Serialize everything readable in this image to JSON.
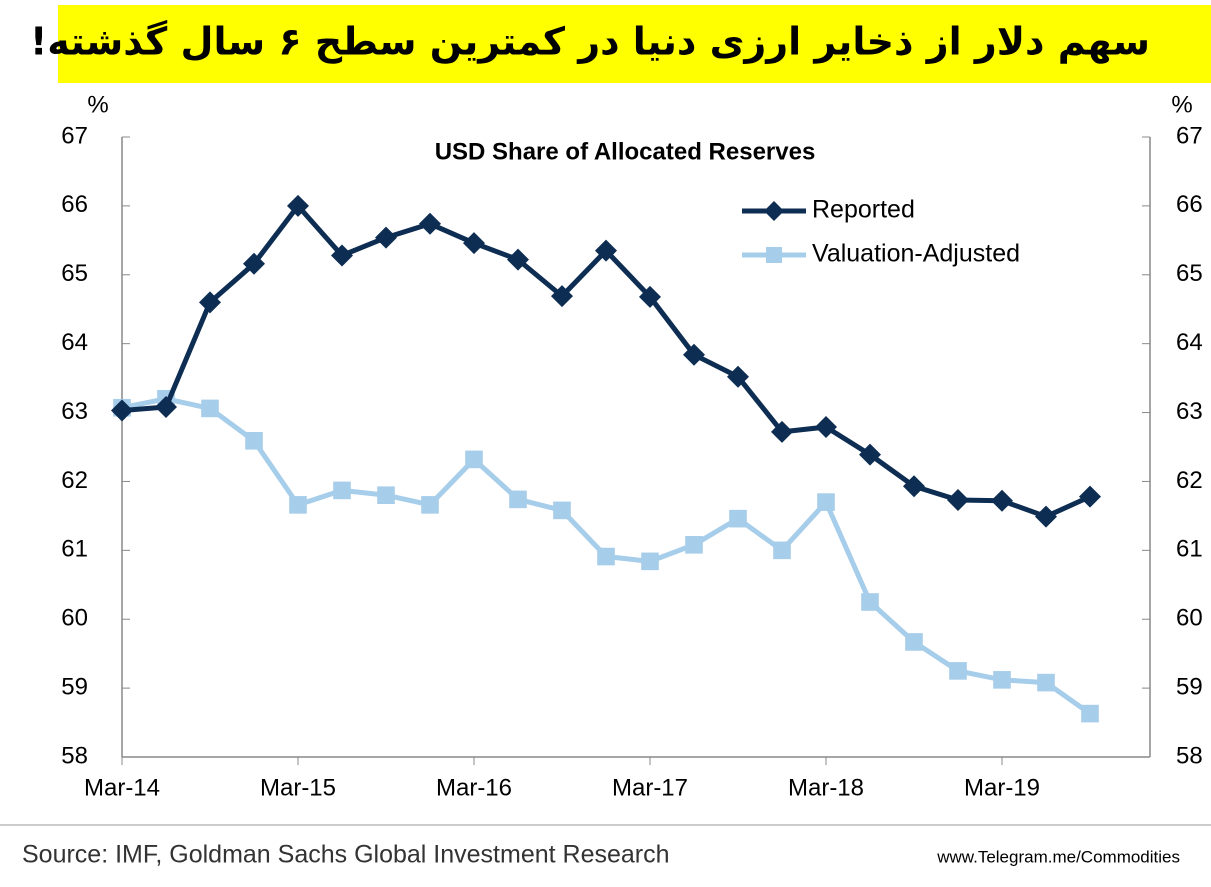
{
  "banner": "سهم دلار از ذخایر ارزی دنیا در کمترین سطح ۶ سال گذشته!",
  "chart_data": {
    "type": "line",
    "title": "USD Share of Allocated Reserves",
    "y_unit": "%",
    "y2_unit": "%",
    "categories": [
      "Mar-14",
      null,
      null,
      null,
      "Mar-15",
      null,
      null,
      null,
      "Mar-16",
      null,
      null,
      null,
      "Mar-17",
      null,
      null,
      null,
      "Mar-18",
      null,
      null,
      null,
      "Mar-19",
      null,
      null
    ],
    "series": [
      {
        "name": "Reported",
        "color": "#0d2d52",
        "marker": "diamond",
        "values": [
          63.03,
          63.08,
          64.6,
          65.16,
          66.0,
          65.28,
          65.54,
          65.74,
          65.46,
          65.22,
          64.69,
          65.35,
          64.68,
          63.84,
          63.52,
          62.72,
          62.79,
          62.39,
          61.93,
          61.73,
          61.72,
          61.49,
          61.78
        ]
      },
      {
        "name": "Valuation-Adjusted",
        "color": "#a6cdea",
        "marker": "square",
        "values": [
          63.07,
          63.2,
          63.06,
          62.59,
          61.66,
          61.87,
          61.8,
          61.66,
          62.32,
          61.74,
          61.58,
          60.91,
          60.84,
          61.08,
          61.46,
          61.0,
          61.7,
          60.25,
          59.67,
          59.25,
          59.12,
          59.08,
          58.63
        ]
      }
    ],
    "ylim": [
      58,
      67
    ],
    "yticks": [
      58,
      59,
      60,
      61,
      62,
      63,
      64,
      65,
      66,
      67
    ],
    "y2lim": [
      58,
      67
    ],
    "y2ticks": [
      58,
      59,
      60,
      61,
      62,
      63,
      64,
      65,
      66,
      67
    ],
    "grid": false,
    "source": "Source: IMF, Goldman Sachs Global Investment Research",
    "watermark": "www.Telegram.me/Commodities"
  }
}
